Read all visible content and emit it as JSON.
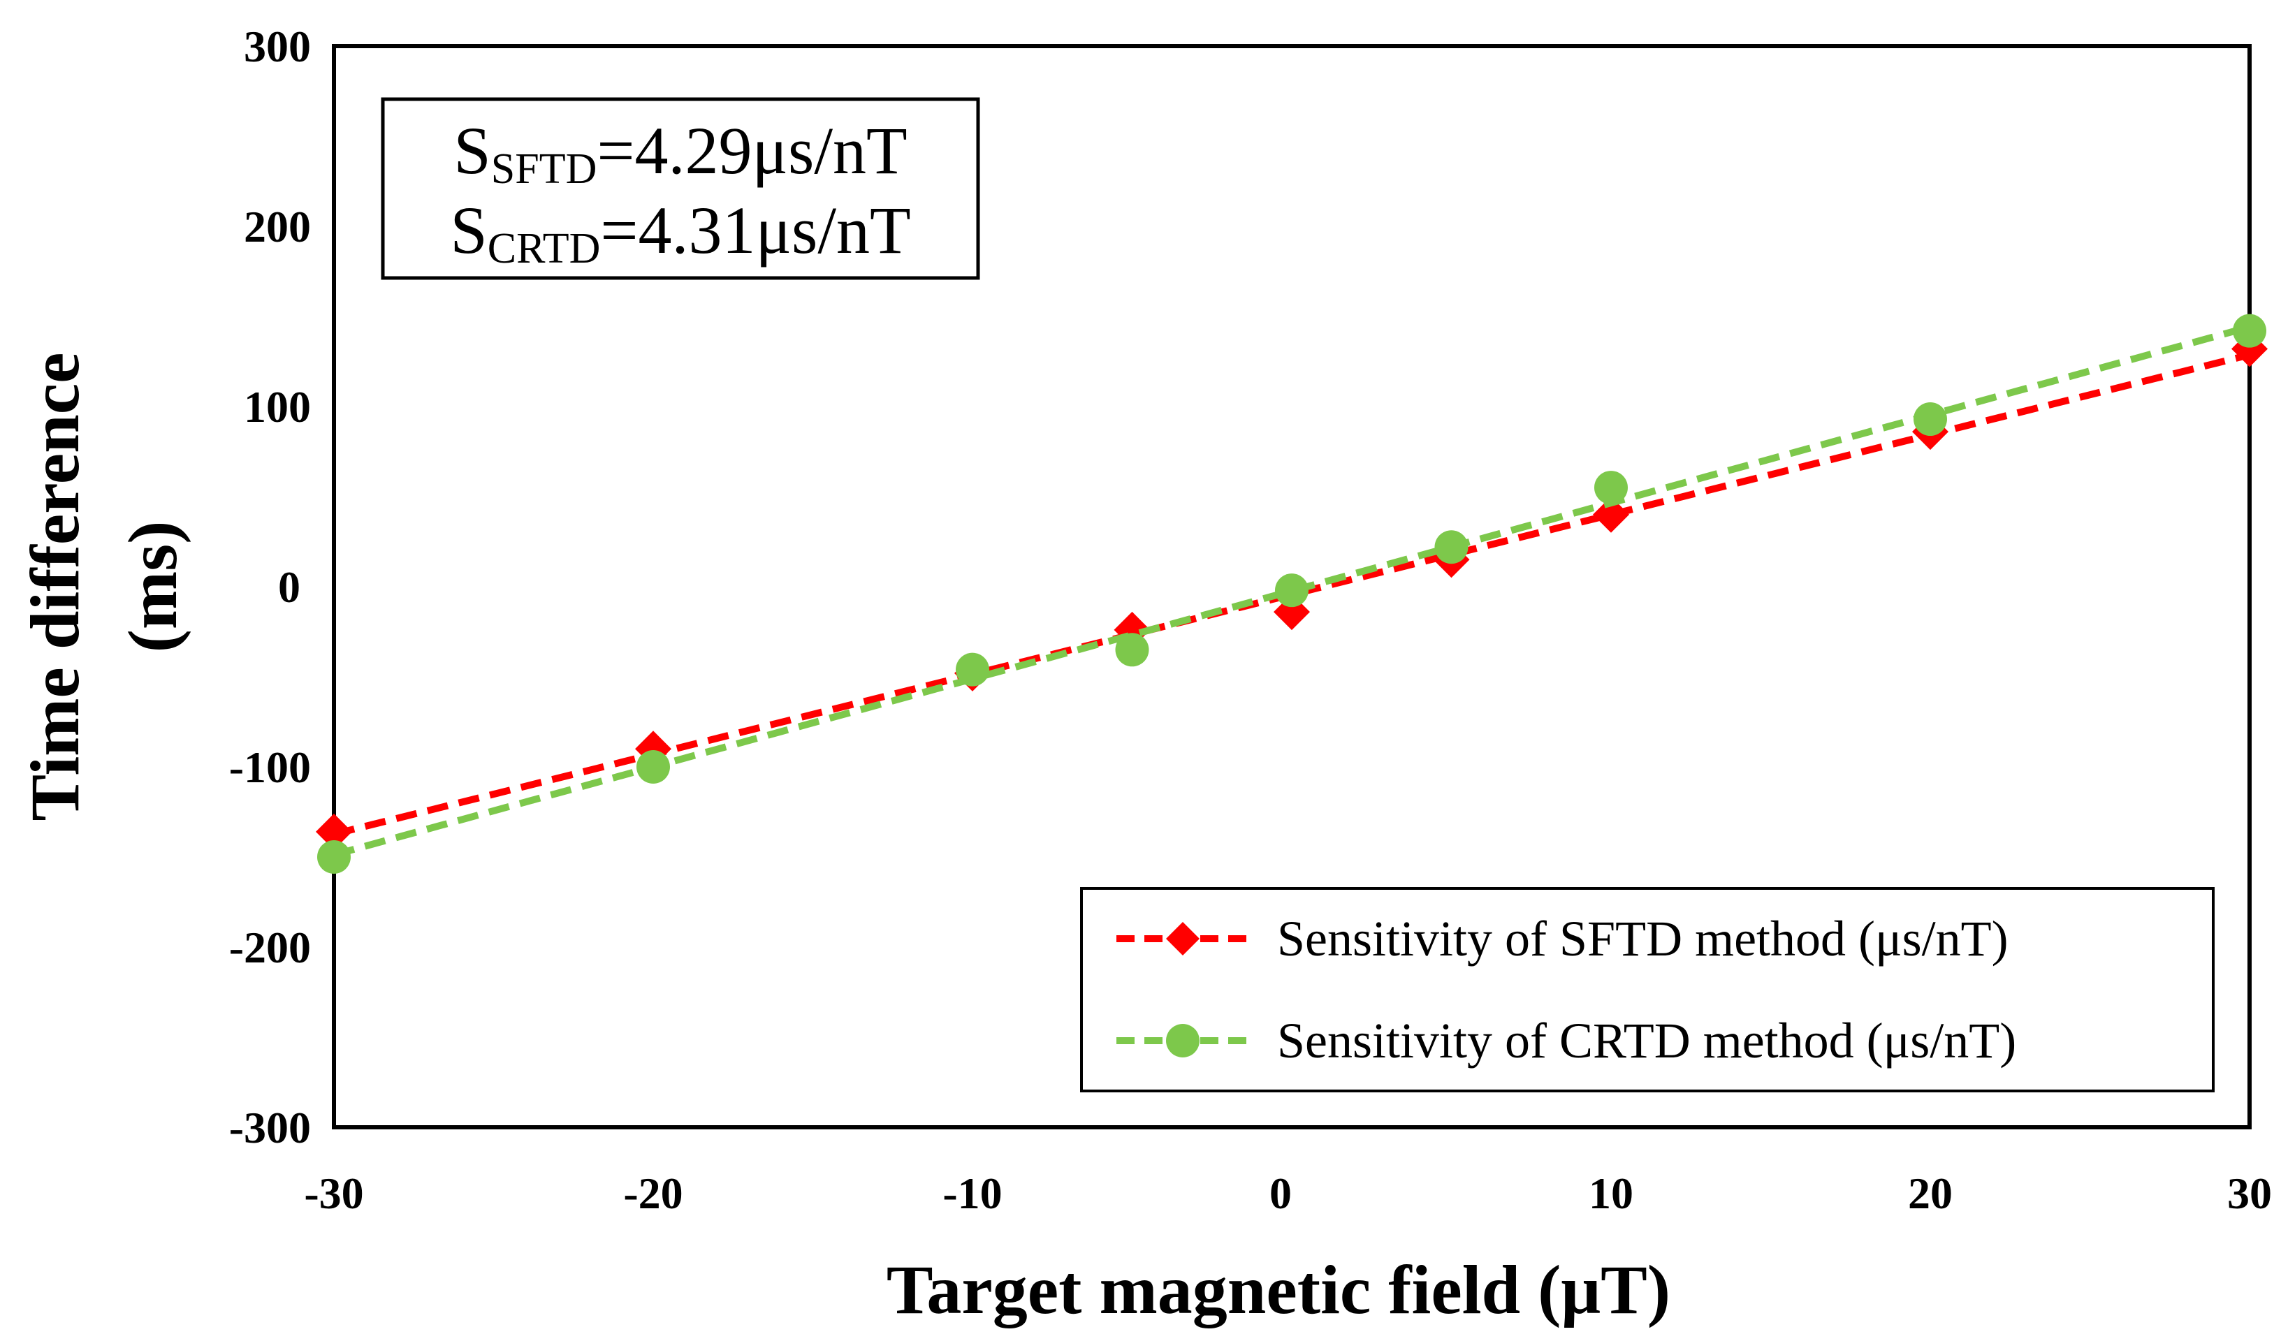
{
  "chart_data": {
    "type": "line",
    "xlabel": "Target magnetic field (μT)",
    "ylabel_line1": "Time difference",
    "ylabel_line2": "(ms)",
    "xlim": [
      -30,
      30
    ],
    "ylim": [
      -300,
      300
    ],
    "xticks": [
      -30,
      -20,
      -10,
      0,
      10,
      20,
      30
    ],
    "yticks": [
      -300,
      -200,
      -100,
      0,
      100,
      200,
      300
    ],
    "grid": false,
    "legend_position": "bottom-right",
    "annotation": {
      "line1": {
        "main": "S",
        "sub": "SFTD",
        "rest": "=4.29μs/nT"
      },
      "line2": {
        "main": "S",
        "sub": "CRTD",
        "rest": "=4.31μs/nT"
      }
    },
    "x": [
      -30,
      -20,
      -10,
      -5,
      0,
      5,
      10,
      20,
      30
    ],
    "series": [
      {
        "name": "Sensitivity of SFTD method (μs/nT)",
        "color": "#ff0000",
        "marker": "diamond",
        "values": [
          -136,
          -90,
          -48,
          -24,
          -14,
          15,
          40,
          86,
          132
        ]
      },
      {
        "name": "Sensitivity of CRTD method  (μs/nT)",
        "color": "#7dc84b",
        "marker": "circle",
        "values": [
          -150,
          -100,
          -46,
          -35,
          -2,
          22,
          55,
          93,
          142
        ]
      }
    ]
  }
}
